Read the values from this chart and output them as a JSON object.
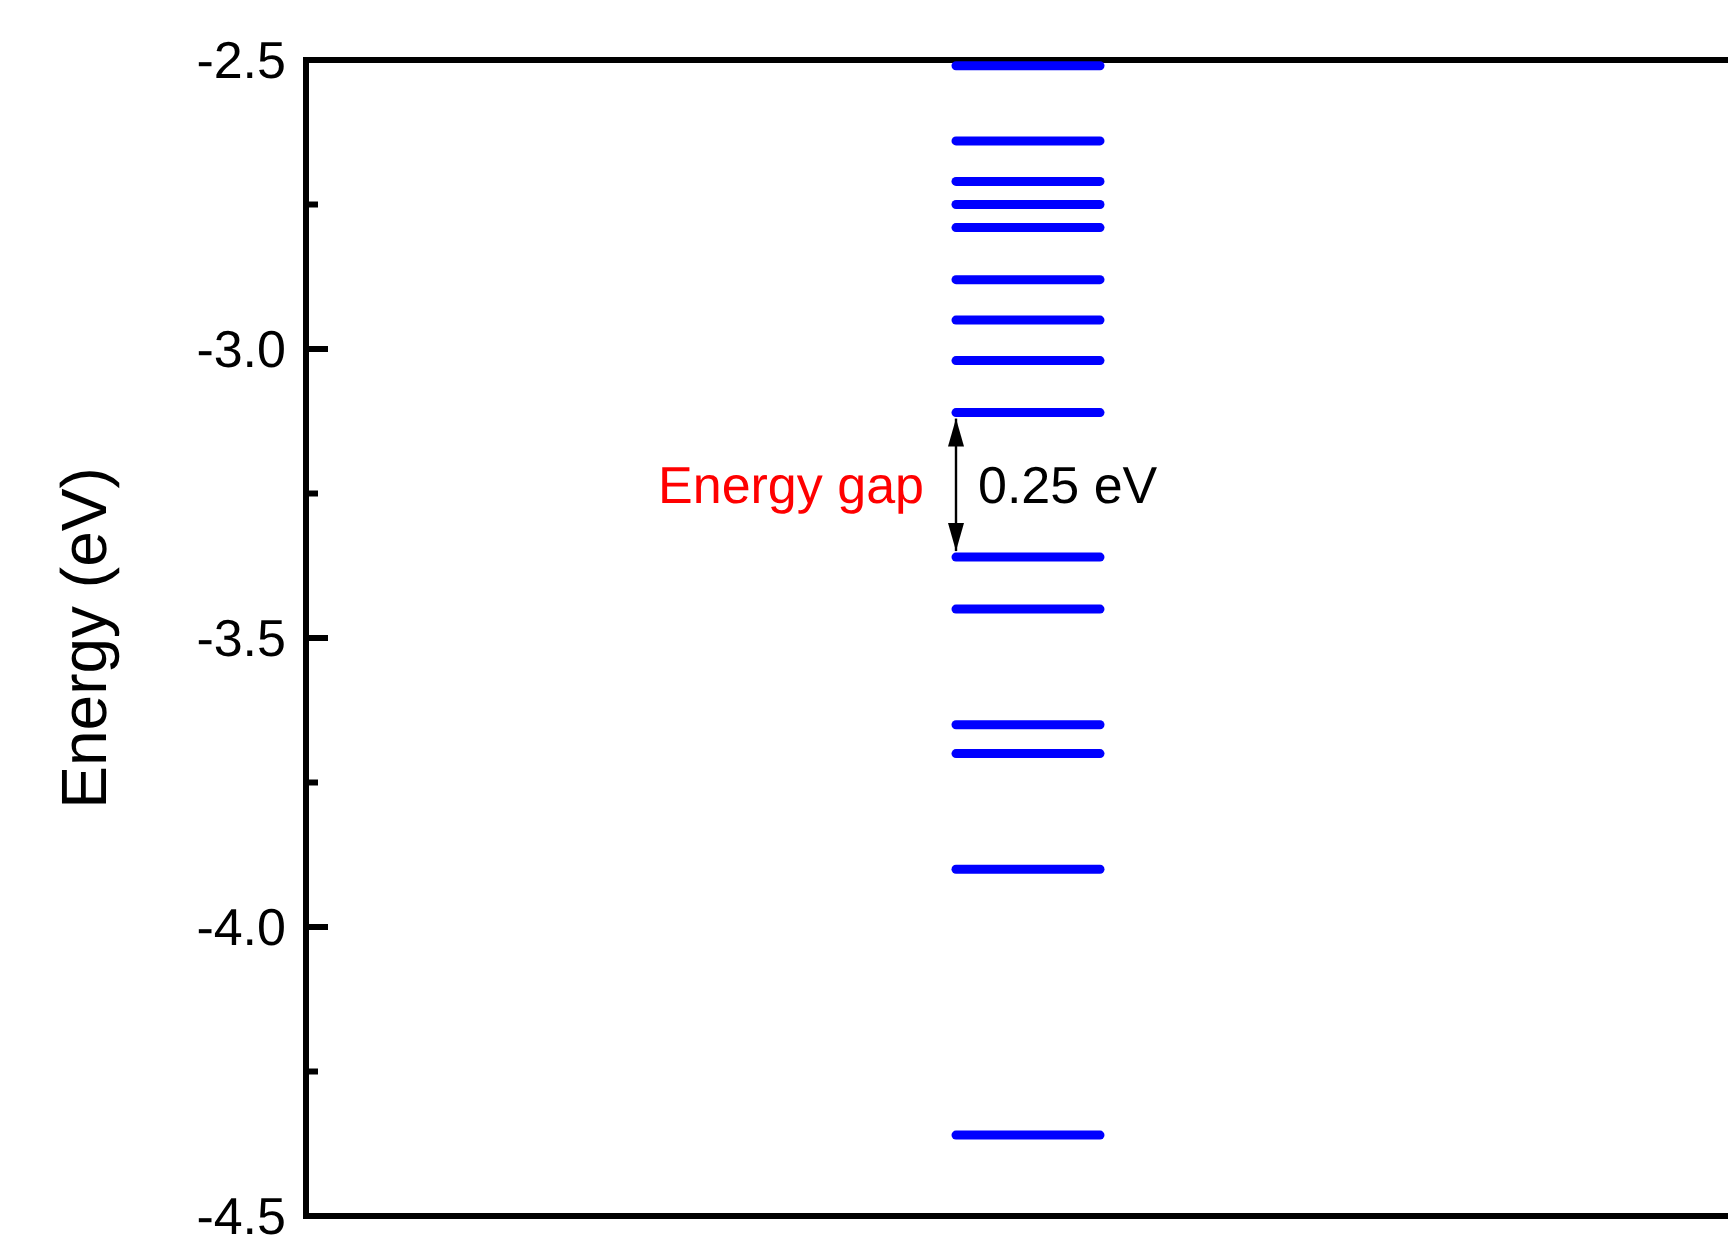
{
  "chart_data": {
    "type": "scatter",
    "ylabel": "Energy (eV)",
    "categories": [
      null
    ],
    "ylim": [
      -4.5,
      -2.5
    ],
    "yticks": [
      -4.5,
      {
        "value": -4.25,
        "label": null
      },
      {
        "value": -4,
        "label": "-4.0"
      },
      {
        "value": -3.75,
        "label": null
      },
      -3.5,
      {
        "value": -3.25,
        "label": null
      },
      {
        "value": -3,
        "label": "-3.0"
      },
      {
        "value": -2.75,
        "label": null
      },
      -2.5
    ],
    "ref_lines": [
      {
        "axis": "y",
        "value": -2.51,
        "color": "#0000ff"
      },
      {
        "axis": "y",
        "value": -2.64,
        "color": "#0000ff"
      },
      {
        "axis": "y",
        "value": -2.71,
        "color": "#0000ff"
      },
      {
        "axis": "y",
        "value": -2.75,
        "color": "#0000ff"
      },
      {
        "axis": "y",
        "value": -2.79,
        "color": "#0000ff"
      },
      {
        "axis": "y",
        "value": -2.88,
        "color": "#0000ff"
      },
      {
        "axis": "y",
        "value": -2.95,
        "color": "#0000ff"
      },
      {
        "axis": "y",
        "value": -3.02,
        "color": "#0000ff"
      },
      {
        "axis": "y",
        "value": -3.11,
        "color": "#0000ff"
      },
      {
        "axis": "y",
        "value": -3.36,
        "color": "#0000ff"
      },
      {
        "axis": "y",
        "value": -3.45,
        "color": "#0000ff"
      },
      {
        "axis": "y",
        "value": -3.65,
        "color": "#0000ff"
      },
      {
        "axis": "y",
        "value": -3.7,
        "color": "#0000ff"
      },
      {
        "axis": "y",
        "value": -3.9,
        "color": "#0000ff"
      },
      {
        "axis": "y",
        "value": -4.36,
        "color": "#0000ff"
      }
    ],
    "annotations": [
      "Energy gap",
      "0.25 eV"
    ],
    "tick_labels": "y",
    "grid": false
  }
}
